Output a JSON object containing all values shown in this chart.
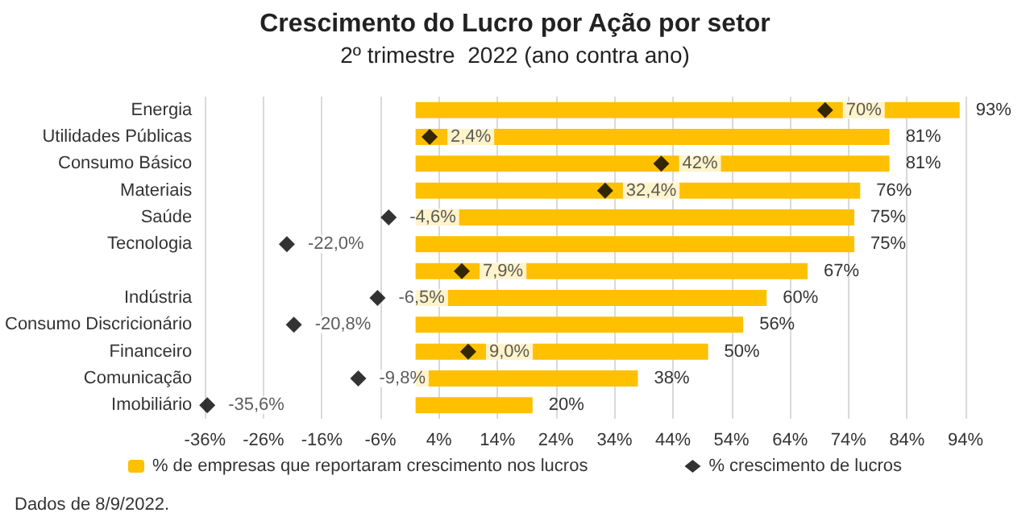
{
  "chart_data": {
    "type": "bar",
    "orientation": "horizontal",
    "title": "Crescimento do Lucro por Ação por setor",
    "subtitle": "2º trimestre  2022 (ano contra ano)",
    "categories": [
      "Energia",
      "Utilidades Públicas",
      "Consumo Básico",
      "Materiais",
      "Saúde",
      "Tecnologia",
      null,
      "Indústria",
      "Consumo Discricionário",
      "Financeiro",
      "Comunicação",
      "Imobiliário"
    ],
    "series": [
      {
        "name": "% de empresas que reportaram crescimento nos lucros",
        "color": "#ffc000",
        "values": [
          93,
          81,
          81,
          76,
          75,
          75,
          67,
          60,
          56,
          50,
          38,
          20
        ],
        "value_labels": [
          "93%",
          "81%",
          "81%",
          "76%",
          "75%",
          "75%",
          "67%",
          "60%",
          "56%",
          "50%",
          "38%",
          "20%"
        ]
      },
      {
        "name": "% crescimento de lucros",
        "type": "scatter",
        "color": "#000000",
        "marker": "diamond",
        "values": [
          70,
          2.4,
          42,
          32.4,
          -4.6,
          -22.0,
          7.9,
          -6.5,
          -20.8,
          9.0,
          -9.8,
          -35.6
        ],
        "value_labels": [
          "70%",
          "2,4%",
          "42%",
          "32,4%",
          "-4,6%",
          "-22,0%",
          "7,9%",
          "-6,5%",
          "-20,8%",
          "9,0%",
          "-9,8%",
          "-35,6%"
        ]
      }
    ],
    "xlim": [
      -36,
      94
    ],
    "xticks": [
      {
        "value": -36,
        "label": "-36%"
      },
      {
        "value": -26,
        "label": "-26%"
      },
      {
        "value": -16,
        "label": "-16%"
      },
      {
        "value": -6,
        "label": "-6%"
      },
      {
        "value": 4,
        "label": "4%"
      },
      {
        "value": 14,
        "label": "14%"
      },
      {
        "value": 24,
        "label": "24%"
      },
      {
        "value": 34,
        "label": "34%"
      },
      {
        "value": 44,
        "label": "44%"
      },
      {
        "value": 54,
        "label": "54%"
      },
      {
        "value": 64,
        "label": "64%"
      },
      {
        "value": 74,
        "label": "74%"
      },
      {
        "value": 84,
        "label": "84%"
      },
      {
        "value": 94,
        "label": "94%"
      }
    ],
    "grid": "x",
    "legend": "bottom",
    "annotations": [
      "Dados de 8/9/2022."
    ]
  }
}
